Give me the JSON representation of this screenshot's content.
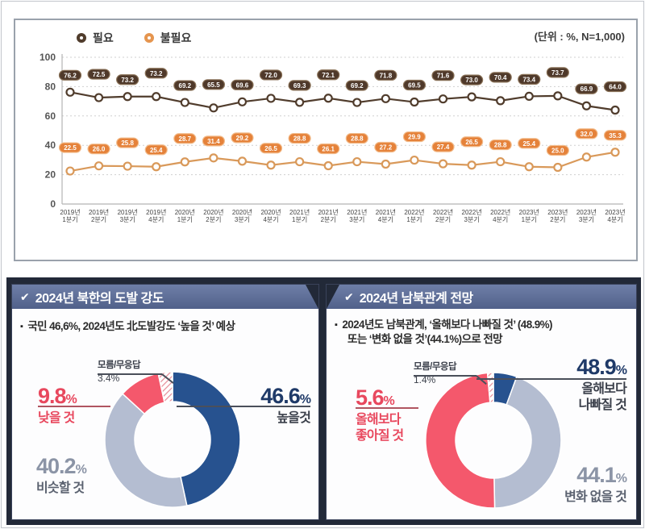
{
  "unit_label": "(단위 : %, N=1,000)",
  "chart_data": [
    {
      "type": "line",
      "title": "필요 vs 불필요 분기별 추이",
      "unit": "(단위 : %, N=1,000)",
      "categories": [
        "2019년 1분기",
        "2019년 2분기",
        "2019년 3분기",
        "2019년 4분기",
        "2020년 1분기",
        "2020년 2분기",
        "2020년 3분기",
        "2020년 4분기",
        "2021년 1분기",
        "2021년 2분기",
        "2021년 3분기",
        "2021년 4분기",
        "2022년 1분기",
        "2022년 2분기",
        "2022년 3분기",
        "2022년 4분기",
        "2023년 1분기",
        "2023년 2분기",
        "2023년 3분기",
        "2023년 4분기"
      ],
      "series": [
        {
          "name": "필요",
          "color": "#503c2c",
          "pill_fill": "#4f392a",
          "pill_stroke": "#8a7258",
          "values": [
            76.2,
            72.5,
            73.2,
            73.2,
            69.2,
            65.5,
            69.6,
            72.0,
            69.3,
            72.1,
            69.2,
            71.8,
            69.5,
            71.6,
            73.0,
            70.4,
            73.4,
            73.7,
            66.9,
            64.0
          ]
        },
        {
          "name": "불필요",
          "color": "#d9995a",
          "pill_fill": "#e5823a",
          "pill_stroke": "#f2bc8c",
          "values": [
            22.5,
            26.0,
            25.8,
            25.4,
            28.7,
            31.4,
            29.2,
            26.5,
            28.8,
            26.1,
            28.8,
            27.2,
            29.9,
            27.4,
            26.5,
            28.8,
            25.4,
            25.0,
            32.0,
            35.3
          ]
        }
      ],
      "ylim": [
        0,
        100
      ],
      "y_ticks": [
        100,
        80,
        60,
        40,
        20,
        0
      ],
      "grid": "dotted-horizontal",
      "legend_position": "top-left"
    },
    {
      "type": "donut",
      "title": "2024년 북한의 도발 강도",
      "slices": [
        {
          "label": "높을것",
          "value": 46.6,
          "color": "#27528f"
        },
        {
          "label": "비슷할 것",
          "value": 40.2,
          "color": "#b4bdd1"
        },
        {
          "label": "낮을 것",
          "value": 9.8,
          "color": "#f4586c"
        },
        {
          "label": "모름/무응답",
          "value": 3.4,
          "color": "hatched-white"
        }
      ]
    },
    {
      "type": "donut",
      "title": "2024년 남북관계 전망",
      "slices": [
        {
          "label": "올해보다 좋아질 것",
          "value": 5.6,
          "color": "#27528f"
        },
        {
          "label": "변화 없을 것",
          "value": 44.1,
          "color": "#b4bdd1"
        },
        {
          "label": "올해보다 나빠질 것",
          "value": 48.9,
          "color": "#f4586c"
        },
        {
          "label": "모름/무응답",
          "value": 1.4,
          "color": "hatched-white"
        }
      ]
    }
  ],
  "legend": {
    "item1": "필요",
    "item2": "불필요"
  },
  "panels": {
    "left": {
      "header": "2024년 북한의 도발 강도",
      "check": "✔",
      "bullet": "국민 46,6%, 2024년도 北도발강도 ‘높을 것’ 예상",
      "callouts": {
        "unknown_label": "모름/무응답",
        "unknown_value": "3.4%",
        "high_value": "46.6",
        "high_unit": "%",
        "high_caption": "높을것",
        "low_value": "9.8",
        "low_unit": "%",
        "low_caption": "낮을 것",
        "mid_value": "40.2",
        "mid_unit": "%",
        "mid_caption": "비슷할 것"
      }
    },
    "right": {
      "header": "2024년 남북관계 전망",
      "check": "✔",
      "bullet_line1": "2024년도 남북관계, ‘올해보다 나빠질 것’ (48.9%)",
      "bullet_line2": "또는 ‘변화 없을 것’(44.1%)으로 전망",
      "callouts": {
        "unknown_label": "모름/무응답",
        "unknown_value": "1.4%",
        "worse_value": "48.9",
        "worse_unit": "%",
        "worse_cap1": "올해보다",
        "worse_cap2": "나빠질 것",
        "better_value": "5.6",
        "better_unit": "%",
        "better_cap1": "올해보다",
        "better_cap2": "좋아질 것",
        "nochange_value": "44.1",
        "nochange_unit": "%",
        "nochange_caption": "변화 없을 것"
      }
    }
  }
}
